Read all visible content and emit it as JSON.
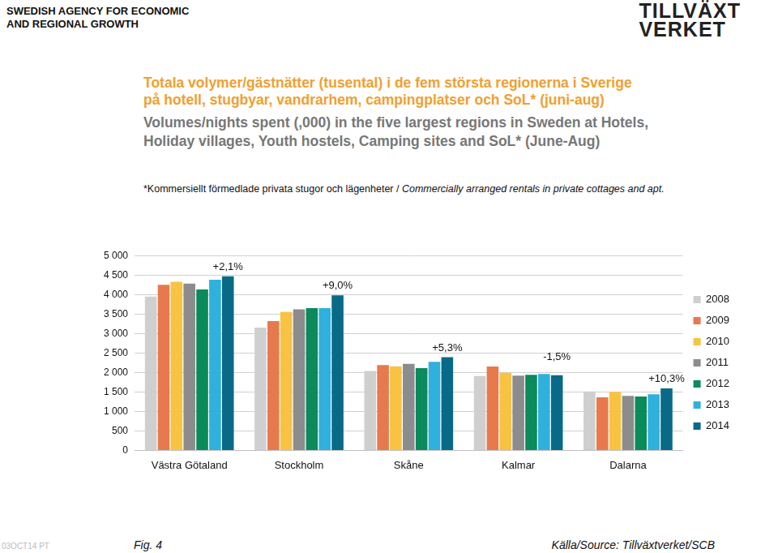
{
  "agency": [
    "SWEDISH AGENCY FOR ECONOMIC",
    "AND REGIONAL GROWTH"
  ],
  "logo": [
    "TILLVÄXT",
    "VERKET"
  ],
  "footnote": [
    "*Kommersiellt förmedlade privata stugor och lägenheter / ",
    "Commercially arranged rentals in private cottages and apt."
  ],
  "date_code": "03OCT14 PT",
  "figure": "Fig. 4",
  "source": "Källa/Source: Tillväxtverket/SCB",
  "chart_data": {
    "type": "bar",
    "title": [
      "Totala volymer/gästnätter (tusental) i de fem största regionerna i Sverige",
      "på hotell, stugbyar, vandrarhem, campingplatser och SoL* (juni-aug)"
    ],
    "subtitle": [
      "Volumes/nights spent (,000) in the five largest regions in Sweden at Hotels,",
      "Holiday villages, Youth hostels, Camping sites and SoL* (June-Aug)"
    ],
    "categories": [
      "Västra Götaland",
      "Stockholm",
      "Skåne",
      "Kalmar",
      "Dalarna"
    ],
    "series": [
      {
        "name": "2008",
        "color": "#d0cfcf",
        "values": [
          3950,
          3150,
          2040,
          1910,
          1510
        ]
      },
      {
        "name": "2009",
        "color": "#e8794e",
        "values": [
          4250,
          3320,
          2190,
          2150,
          1360
        ]
      },
      {
        "name": "2010",
        "color": "#f8c343",
        "values": [
          4330,
          3550,
          2160,
          1990,
          1500
        ]
      },
      {
        "name": "2011",
        "color": "#8c8c8c",
        "values": [
          4280,
          3620,
          2220,
          1920,
          1400
        ]
      },
      {
        "name": "2012",
        "color": "#0b8a5b",
        "values": [
          4130,
          3650,
          2110,
          1940,
          1380
        ]
      },
      {
        "name": "2013",
        "color": "#2fb0dd",
        "values": [
          4380,
          3650,
          2270,
          1960,
          1440
        ]
      },
      {
        "name": "2014",
        "color": "#086a86",
        "values": [
          4470,
          3980,
          2390,
          1930,
          1590
        ]
      }
    ],
    "annotations": [
      {
        "category": "Västra Götaland",
        "text": "+2,1%"
      },
      {
        "category": "Stockholm",
        "text": "+9,0%"
      },
      {
        "category": "Skåne",
        "text": "+5,3%"
      },
      {
        "category": "Kalmar",
        "text": "-1,5%"
      },
      {
        "category": "Dalarna",
        "text": "+10,3%"
      }
    ],
    "ylim": [
      0,
      5000
    ],
    "yticks": [
      0,
      500,
      {
        "value": 1000,
        "label": "1 000"
      },
      {
        "value": 1500,
        "label": "1 500"
      },
      {
        "value": 2000,
        "label": "2 000"
      },
      {
        "value": 2500,
        "label": "2 500"
      },
      {
        "value": 3000,
        "label": "3 000"
      },
      {
        "value": 3500,
        "label": "3 500"
      },
      {
        "value": 4000,
        "label": "4 000"
      },
      {
        "value": 4500,
        "label": "4 500"
      },
      {
        "value": 5000,
        "label": "5 000"
      }
    ],
    "grid": true,
    "legend": "right"
  }
}
